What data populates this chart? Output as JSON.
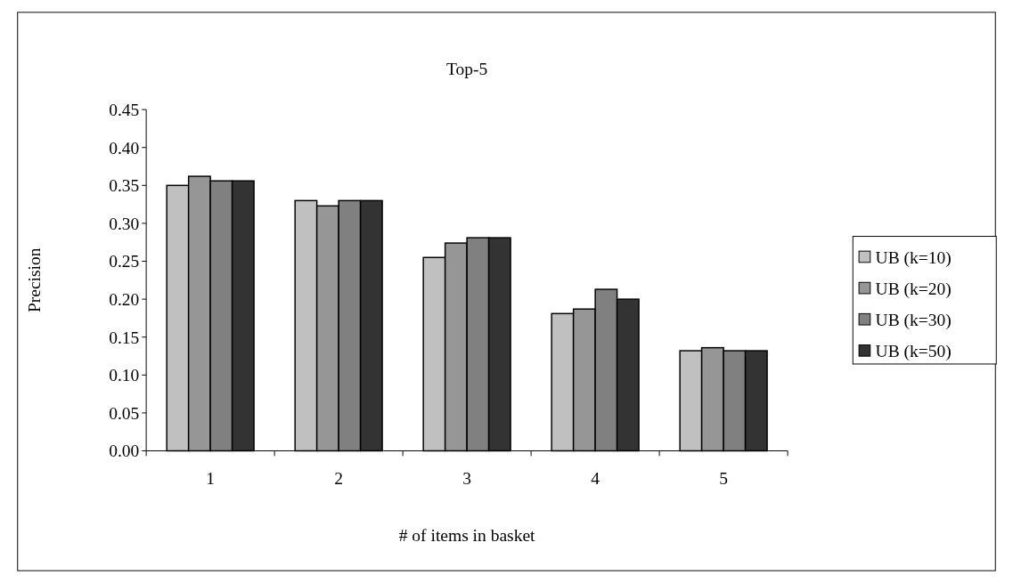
{
  "chart_data": {
    "type": "bar",
    "title": "Top-5",
    "xlabel": "# of items in basket",
    "ylabel": "Precision",
    "categories": [
      "1",
      "2",
      "3",
      "4",
      "5"
    ],
    "series": [
      {
        "name": "UB (k=10)",
        "color": "#c0c0c0",
        "values": [
          0.35,
          0.33,
          0.255,
          0.181,
          0.132
        ]
      },
      {
        "name": "UB (k=20)",
        "color": "#969696",
        "values": [
          0.362,
          0.323,
          0.274,
          0.187,
          0.136
        ]
      },
      {
        "name": "UB (k=30)",
        "color": "#808080",
        "values": [
          0.356,
          0.33,
          0.281,
          0.213,
          0.132
        ]
      },
      {
        "name": "UB (k=50)",
        "color": "#333333",
        "values": [
          0.356,
          0.33,
          0.281,
          0.2,
          0.132
        ]
      }
    ],
    "ylim": [
      0,
      0.45
    ],
    "yticks": [
      {
        "value": 0,
        "label": "0.00"
      },
      {
        "value": 0.05,
        "label": "0.05"
      },
      {
        "value": 0.1,
        "label": "0.10"
      },
      {
        "value": 0.15,
        "label": "0.15"
      },
      {
        "value": 0.2,
        "label": "0.20"
      },
      {
        "value": 0.25,
        "label": "0.25"
      },
      {
        "value": 0.3,
        "label": "0.30"
      },
      {
        "value": 0.35,
        "label": "0.35"
      },
      {
        "value": 0.4,
        "label": "0.40"
      },
      {
        "value": 0.45,
        "label": "0.45"
      }
    ],
    "grid": false,
    "legend": "right"
  }
}
